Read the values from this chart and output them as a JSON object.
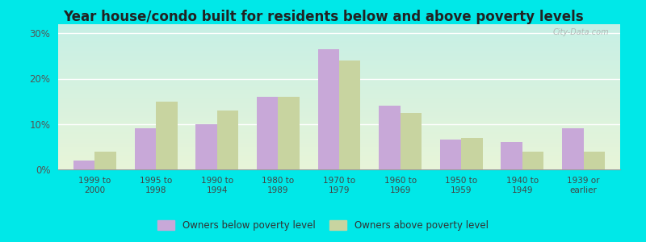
{
  "title": "Year house/condo built for residents below and above poverty levels",
  "categories": [
    "1999 to\n2000",
    "1995 to\n1998",
    "1990 to\n1994",
    "1980 to\n1989",
    "1970 to\n1979",
    "1960 to\n1969",
    "1950 to\n1959",
    "1940 to\n1949",
    "1939 or\nearlier"
  ],
  "below_poverty": [
    2.0,
    9.0,
    10.0,
    16.0,
    26.5,
    14.0,
    6.5,
    6.0,
    9.0
  ],
  "above_poverty": [
    4.0,
    15.0,
    13.0,
    16.0,
    24.0,
    12.5,
    7.0,
    4.0,
    4.0
  ],
  "below_color": "#c8a8d8",
  "above_color": "#c8d4a0",
  "ylim": [
    0,
    32
  ],
  "yticks": [
    0,
    10,
    20,
    30
  ],
  "ytick_labels": [
    "0%",
    "10%",
    "20%",
    "30%"
  ],
  "outer_bg": "#00e8e8",
  "title_fontsize": 12,
  "legend_below_label": "Owners below poverty level",
  "legend_above_label": "Owners above poverty level",
  "watermark": "City-Data.com",
  "bg_top_left": "#c8f0e8",
  "bg_bottom_right": "#e8f4d8"
}
